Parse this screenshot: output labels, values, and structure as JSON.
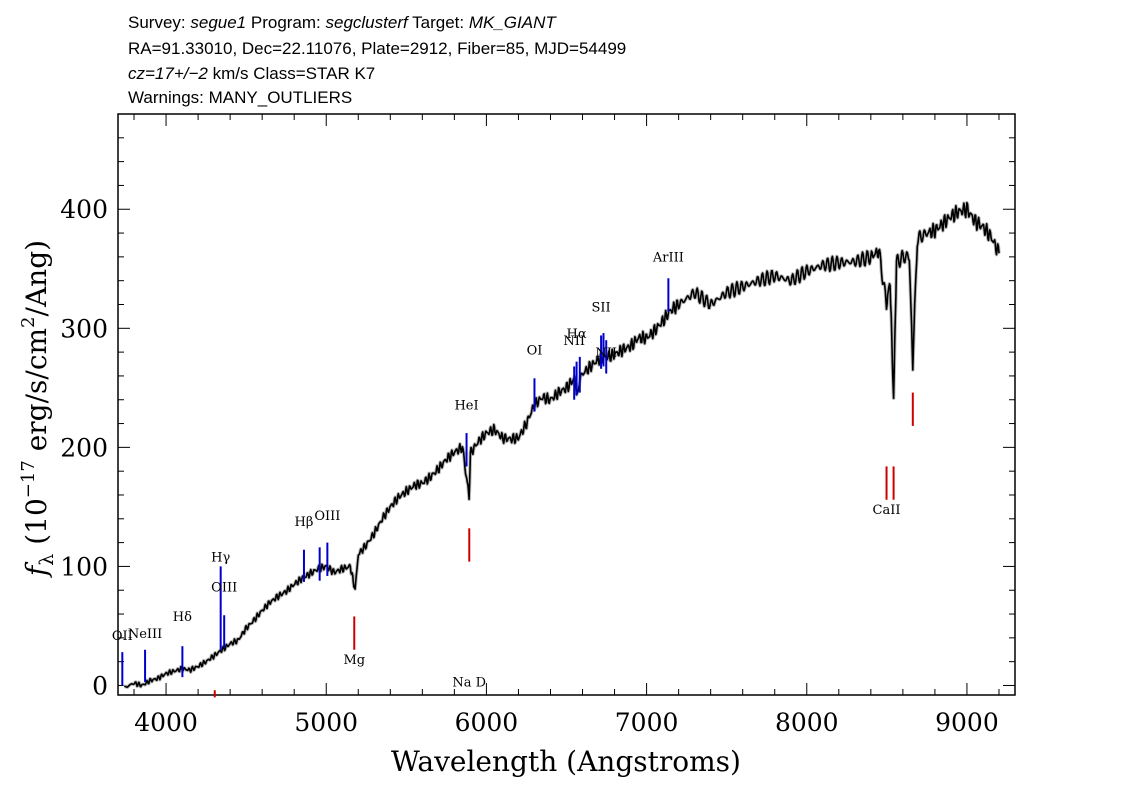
{
  "header": {
    "line1_survey_label": "Survey: ",
    "line1_survey_value": "segue1",
    "line1_program_label": " Program: ",
    "line1_program_value": "segclusterf",
    "line1_target_label": " Target: ",
    "line1_target_value": "MK_GIANT",
    "line2": "RA=91.33010, Dec=22.11076, Plate=2912, Fiber=85, MJD=54499",
    "line3_cz": "cz=17+/−2",
    "line3_rest": " km/s Class=STAR K7",
    "line4": "Warnings: MANY_OUTLIERS"
  },
  "chart_data": {
    "type": "line",
    "xlabel": "Wavelength (Angstroms)",
    "ylabel_prefix": "f",
    "ylabel_sub": "λ",
    "ylabel_units": " (10",
    "ylabel_exp1": "−17",
    "ylabel_mid": " erg/s/cm",
    "ylabel_exp2": "2",
    "ylabel_end": "/Ang)",
    "xlim": [
      3700,
      9300
    ],
    "ylim": [
      -8,
      480
    ],
    "xticks": [
      4000,
      5000,
      6000,
      7000,
      8000,
      9000
    ],
    "yticks": [
      0,
      100,
      200,
      300,
      400
    ],
    "xminor_step": 200,
    "yminor_step": 20,
    "series": [
      {
        "color": "#000000",
        "x": [
          3740,
          3800,
          3850,
          3900,
          3950,
          4000,
          4050,
          4100,
          4150,
          4200,
          4250,
          4300,
          4350,
          4400,
          4450,
          4500,
          4550,
          4600,
          4650,
          4700,
          4750,
          4800,
          4850,
          4900,
          4950,
          5000,
          5050,
          5100,
          5150,
          5180,
          5200,
          5250,
          5300,
          5350,
          5400,
          5450,
          5500,
          5550,
          5600,
          5650,
          5700,
          5750,
          5800,
          5850,
          5870,
          5892,
          5900,
          5950,
          6000,
          6050,
          6100,
          6150,
          6200,
          6250,
          6300,
          6350,
          6400,
          6450,
          6500,
          6550,
          6563,
          6580,
          6600,
          6650,
          6700,
          6750,
          6800,
          6850,
          6900,
          6950,
          7000,
          7050,
          7100,
          7150,
          7200,
          7300,
          7400,
          7500,
          7600,
          7700,
          7800,
          7900,
          8000,
          8100,
          8200,
          8300,
          8400,
          8450,
          8498,
          8520,
          8542,
          8560,
          8600,
          8640,
          8662,
          8690,
          8750,
          8800,
          8850,
          8900,
          8950,
          9000,
          9050,
          9100,
          9150,
          9200
        ],
        "y": [
          -2,
          2,
          0,
          4,
          6,
          10,
          12,
          14,
          13,
          16,
          20,
          25,
          30,
          35,
          38,
          48,
          55,
          63,
          70,
          75,
          79,
          85,
          90,
          94,
          98,
          100,
          95,
          98,
          100,
          80,
          110,
          118,
          128,
          140,
          150,
          158,
          163,
          168,
          170,
          175,
          182,
          190,
          196,
          200,
          180,
          160,
          195,
          205,
          212,
          215,
          208,
          207,
          208,
          220,
          236,
          242,
          240,
          246,
          250,
          258,
          245,
          255,
          262,
          268,
          274,
          276,
          278,
          282,
          285,
          292,
          292,
          298,
          306,
          315,
          320,
          330,
          320,
          330,
          335,
          340,
          344,
          340,
          348,
          353,
          355,
          356,
          360,
          365,
          320,
          340,
          240,
          355,
          360,
          360,
          270,
          375,
          380,
          382,
          388,
          394,
          398,
          400,
          390,
          385,
          377,
          363
        ]
      }
    ],
    "emission_lines": [
      {
        "label": "OII",
        "wave": 3727,
        "bottom": 0,
        "top": 28,
        "label_y": 38
      },
      {
        "label": "NeIII",
        "wave": 3869,
        "bottom": 3,
        "top": 30,
        "label_y": 40
      },
      {
        "label": "Hδ",
        "wave": 4102,
        "bottom": 7,
        "top": 33,
        "label_y": 54
      },
      {
        "label": "Hγ",
        "wave": 4341,
        "bottom": 30,
        "top": 100,
        "label_y": 104
      },
      {
        "label": "OIII",
        "wave": 4363,
        "bottom": 32,
        "top": 59,
        "label_y": 79
      },
      {
        "label": "Hβ",
        "wave": 4861,
        "bottom": 87,
        "top": 114,
        "label_y": 134
      },
      {
        "label": "OIII",
        "wave": 4959,
        "bottom": 88,
        "top": 116,
        "label_y": 0
      },
      {
        "label": "OIII",
        "wave": 5007,
        "bottom": 92,
        "top": 120,
        "label_y": 139
      },
      {
        "label": "HeI",
        "wave": 5876,
        "bottom": 184,
        "top": 212,
        "label_y": 232
      },
      {
        "label": "OI",
        "wave": 6300,
        "bottom": 230,
        "top": 258,
        "label_y": 278
      },
      {
        "label": "NII",
        "wave": 6548,
        "bottom": 240,
        "top": 268,
        "label_y": 286
      },
      {
        "label": "Hα",
        "wave": 6563,
        "bottom": 244,
        "top": 272,
        "label_y": 292
      },
      {
        "label": "NII",
        "wave": 6583,
        "bottom": 246,
        "top": 276,
        "label_y": 0
      },
      {
        "label": "SII",
        "wave": 6716,
        "bottom": 266,
        "top": 294,
        "label_y": 314
      },
      {
        "label": "SII",
        "wave": 6731,
        "bottom": 268,
        "top": 296,
        "label_y": 0
      },
      {
        "label": "NII",
        "wave": 6748,
        "bottom": 262,
        "top": 290,
        "label_y": 276
      },
      {
        "label": "ArIII",
        "wave": 7136,
        "bottom": 314,
        "top": 342,
        "label_y": 356
      }
    ],
    "absorption_lines": [
      {
        "label": "",
        "wave": 4304,
        "bottom": -10,
        "top": -4,
        "label_y": 0
      },
      {
        "label": "Mg",
        "wave": 5175,
        "bottom": 30,
        "top": 58,
        "label_y": 18
      },
      {
        "label": "Na D",
        "wave": 5893,
        "bottom": 104,
        "top": 132,
        "label_y": -1
      },
      {
        "label": "CaII",
        "wave": 8498,
        "bottom": 156,
        "top": 184,
        "label_y": 144
      },
      {
        "label": "CaII",
        "wave": 8542,
        "bottom": 156,
        "top": 184,
        "label_y": 0
      },
      {
        "label": "CaII",
        "wave": 8662,
        "bottom": 218,
        "top": 246,
        "label_y": 0
      }
    ]
  },
  "colors": {
    "emission": "#0000cc",
    "absorption": "#cc0000",
    "spectrum": "#000000"
  }
}
